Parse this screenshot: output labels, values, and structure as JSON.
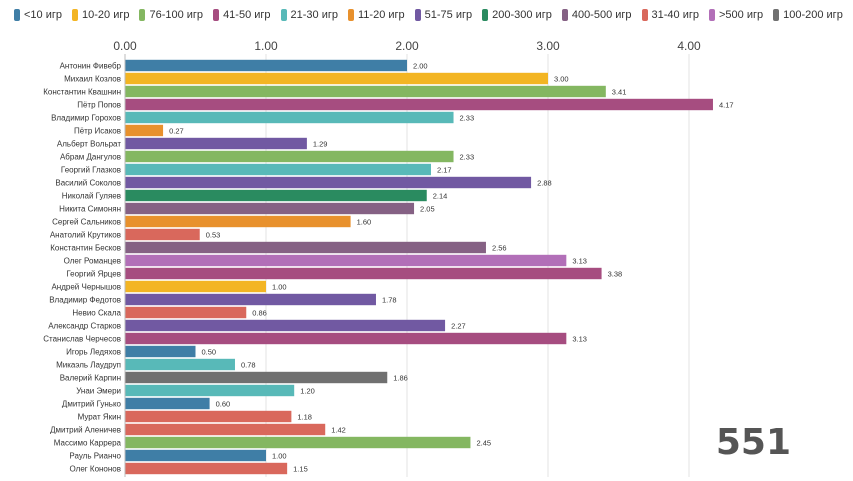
{
  "chart_data": {
    "type": "bar",
    "orientation": "horizontal",
    "title": "",
    "xlabel": "",
    "ylabel": "",
    "xlim": [
      0,
      4.55
    ],
    "x_ticks": [
      "0.00",
      "1.00",
      "2.00",
      "3.00",
      "4.00"
    ],
    "x_tick_values": [
      0,
      1,
      2,
      3,
      4
    ],
    "grid": true,
    "legend_position": "top-left",
    "legend": [
      {
        "label": "<10 игр",
        "color": "#3f7ea6"
      },
      {
        "label": "10-20 игр",
        "color": "#f3b523"
      },
      {
        "label": "76-100 игр",
        "color": "#84b761"
      },
      {
        "label": "41-50 игр",
        "color": "#a64d80"
      },
      {
        "label": "21-30 игр",
        "color": "#58b9b8"
      },
      {
        "label": "11-20 игр",
        "color": "#e8912d"
      },
      {
        "label": "51-75 игр",
        "color": "#7159a2"
      },
      {
        "label": "200-300 игр",
        "color": "#2a8b60"
      },
      {
        "label": "400-500 игр",
        "color": "#856184"
      },
      {
        "label": "31-40 игр",
        "color": "#d9685c"
      },
      {
        ">500 игр": null,
        "label": ">500 игр",
        "color": "#b26fb8"
      },
      {
        "label": "100-200 игр",
        "color": "#707070"
      }
    ],
    "bars": [
      {
        "name": "Антонин Фивебр",
        "value": 2.0,
        "label": "2.00",
        "color": "#3f7ea6"
      },
      {
        "name": "Михаил Козлов",
        "value": 3.0,
        "label": "3.00",
        "color": "#f3b523"
      },
      {
        "name": "Константин Квашнин",
        "value": 3.41,
        "label": "3.41",
        "color": "#84b761"
      },
      {
        "name": "Пётр Попов",
        "value": 4.17,
        "label": "4.17",
        "color": "#a64d80"
      },
      {
        "name": "Владимир Горохов",
        "value": 2.33,
        "label": "2.33",
        "color": "#58b9b8"
      },
      {
        "name": "Пётр Исаков",
        "value": 0.27,
        "label": "0.27",
        "color": "#e8912d"
      },
      {
        "name": "Альберт Вольрат",
        "value": 1.29,
        "label": "1.29",
        "color": "#7159a2"
      },
      {
        "name": "Абрам Дангулов",
        "value": 2.33,
        "label": "2.33",
        "color": "#84b761"
      },
      {
        "name": "Георгий Глазков",
        "value": 2.17,
        "label": "2.17",
        "color": "#58b9b8"
      },
      {
        "name": "Василий Соколов",
        "value": 2.88,
        "label": "2.88",
        "color": "#7159a2"
      },
      {
        "name": "Николай Гуляев",
        "value": 2.14,
        "label": "2.14",
        "color": "#2a8b60"
      },
      {
        "name": "Никита Симонян",
        "value": 2.05,
        "label": "2.05",
        "color": "#856184"
      },
      {
        "name": "Сергей Сальников",
        "value": 1.6,
        "label": "1.60",
        "color": "#e8912d"
      },
      {
        "name": "Анатолий Крутиков",
        "value": 0.53,
        "label": "0.53",
        "color": "#d9685c"
      },
      {
        "name": "Константин Бесков",
        "value": 2.56,
        "label": "2.56",
        "color": "#856184"
      },
      {
        "name": "Олег Романцев",
        "value": 3.13,
        "label": "3.13",
        "color": "#b26fb8"
      },
      {
        "name": "Георгий Ярцев",
        "value": 3.38,
        "label": "3.38",
        "color": "#a64d80"
      },
      {
        "name": "Андрей Чернышов",
        "value": 1.0,
        "label": "1.00",
        "color": "#f3b523"
      },
      {
        "name": "Владимир Федотов",
        "value": 1.78,
        "label": "1.78",
        "color": "#7159a2"
      },
      {
        "name": "Невио Скала",
        "value": 0.86,
        "label": "0.86",
        "color": "#d9685c"
      },
      {
        "name": "Александр Старков",
        "value": 2.27,
        "label": "2.27",
        "color": "#7159a2"
      },
      {
        "name": "Станислав Черчесов",
        "value": 3.13,
        "label": "3.13",
        "color": "#a64d80"
      },
      {
        "name": "Игорь Ледяхов",
        "value": 0.5,
        "label": "0.50",
        "color": "#3f7ea6"
      },
      {
        "name": "Микаэль Лаудруп",
        "value": 0.78,
        "label": "0.78",
        "color": "#58b9b8"
      },
      {
        "name": "Валерий Карпин",
        "value": 1.86,
        "label": "1.86",
        "color": "#707070"
      },
      {
        "name": "Унаи Эмери",
        "value": 1.2,
        "label": "1.20",
        "color": "#58b9b8"
      },
      {
        "name": "Дмитрий Гунько",
        "value": 0.6,
        "label": "0.60",
        "color": "#3f7ea6"
      },
      {
        "name": "Мурат Якин",
        "value": 1.18,
        "label": "1.18",
        "color": "#d9685c"
      },
      {
        "name": "Дмитрий Аленичев",
        "value": 1.42,
        "label": "1.42",
        "color": "#d9685c"
      },
      {
        "name": "Массимо Каррера",
        "value": 2.45,
        "label": "2.45",
        "color": "#84b761"
      },
      {
        "name": "Рауль Рианчо",
        "value": 1.0,
        "label": "1.00",
        "color": "#3f7ea6"
      },
      {
        "name": "Олег Кононов",
        "value": 1.15,
        "label": "1.15",
        "color": "#d9685c"
      }
    ]
  },
  "counter": "551"
}
